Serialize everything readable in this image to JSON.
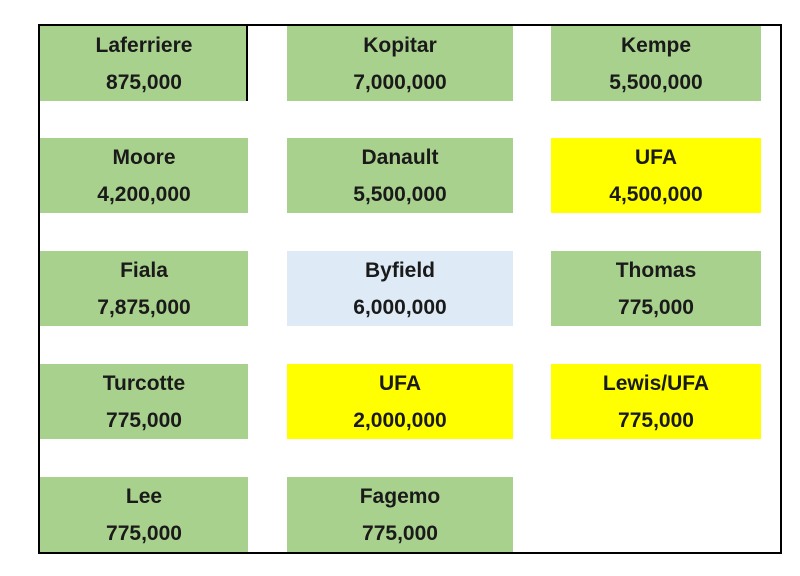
{
  "colors": {
    "green": "#a9d18e",
    "yellow": "#ffff00",
    "blue": "#deebf7",
    "border": "#000000"
  },
  "rows": [
    [
      {
        "name": "Laferriere",
        "amount": "875,000",
        "color": "green"
      },
      {
        "name": "Kopitar",
        "amount": "7,000,000",
        "color": "green"
      },
      {
        "name": "Kempe",
        "amount": "5,500,000",
        "color": "green"
      }
    ],
    [
      {
        "name": "Moore",
        "amount": "4,200,000",
        "color": "green"
      },
      {
        "name": "Danault",
        "amount": "5,500,000",
        "color": "green"
      },
      {
        "name": "UFA",
        "amount": "4,500,000",
        "color": "yellow"
      }
    ],
    [
      {
        "name": "Fiala",
        "amount": "7,875,000",
        "color": "green"
      },
      {
        "name": "Byfield",
        "amount": "6,000,000",
        "color": "blue"
      },
      {
        "name": "Thomas",
        "amount": "775,000",
        "color": "green"
      }
    ],
    [
      {
        "name": "Turcotte",
        "amount": "775,000",
        "color": "green"
      },
      {
        "name": "UFA",
        "amount": "2,000,000",
        "color": "yellow"
      },
      {
        "name": "Lewis/UFA",
        "amount": "775,000",
        "color": "yellow"
      }
    ],
    [
      {
        "name": "Lee",
        "amount": "775,000",
        "color": "green"
      },
      {
        "name": "Fagemo",
        "amount": "775,000",
        "color": "green"
      }
    ]
  ]
}
